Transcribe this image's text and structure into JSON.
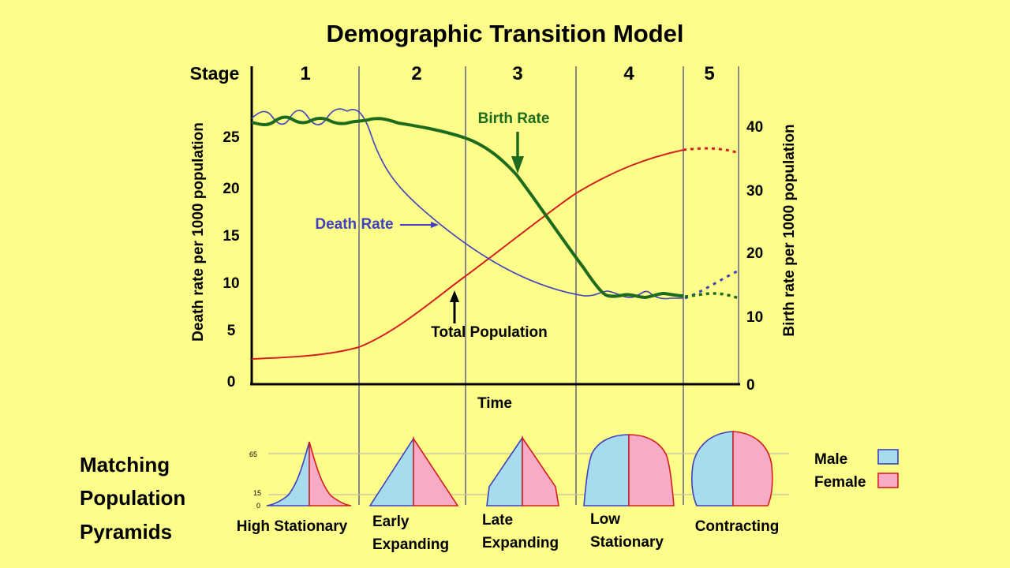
{
  "title": "Demographic Transition Model",
  "stage_label": "Stage",
  "stages": [
    "1",
    "2",
    "3",
    "4",
    "5"
  ],
  "y_left_label": "Death rate per 1000 population",
  "y_right_label": "Birth rate per 1000 population",
  "y_left_ticks": [
    "0",
    "5",
    "10",
    "15",
    "20",
    "25"
  ],
  "y_right_ticks": [
    "0",
    "10",
    "20",
    "30",
    "40"
  ],
  "x_label": "Time",
  "annotations": {
    "birth_rate": "Birth Rate",
    "death_rate": "Death Rate",
    "total_population": "Total Population"
  },
  "pyramids_heading": [
    "Matching",
    "Population",
    "Pyramids"
  ],
  "pyramid_age_ticks": [
    "65",
    "15",
    "0"
  ],
  "pyramids": [
    {
      "label_lines": [
        "High Stationary"
      ]
    },
    {
      "label_lines": [
        "Early",
        "Expanding"
      ]
    },
    {
      "label_lines": [
        "Late",
        "Expanding"
      ]
    },
    {
      "label_lines": [
        "Low",
        "Stationary"
      ]
    },
    {
      "label_lines": [
        "Contracting"
      ]
    }
  ],
  "legend": [
    {
      "label": "Male",
      "color": "#a6dcee"
    },
    {
      "label": "Female",
      "color": "#f7abc7"
    }
  ],
  "colors": {
    "background": "#fdfd8a",
    "birth_rate": "#1e6b1e",
    "death_rate": "#4040c0",
    "total_population": "#d42020",
    "male": "#a6dcee",
    "female": "#f7abc7",
    "stage_divider": "#8a8a8a"
  }
}
